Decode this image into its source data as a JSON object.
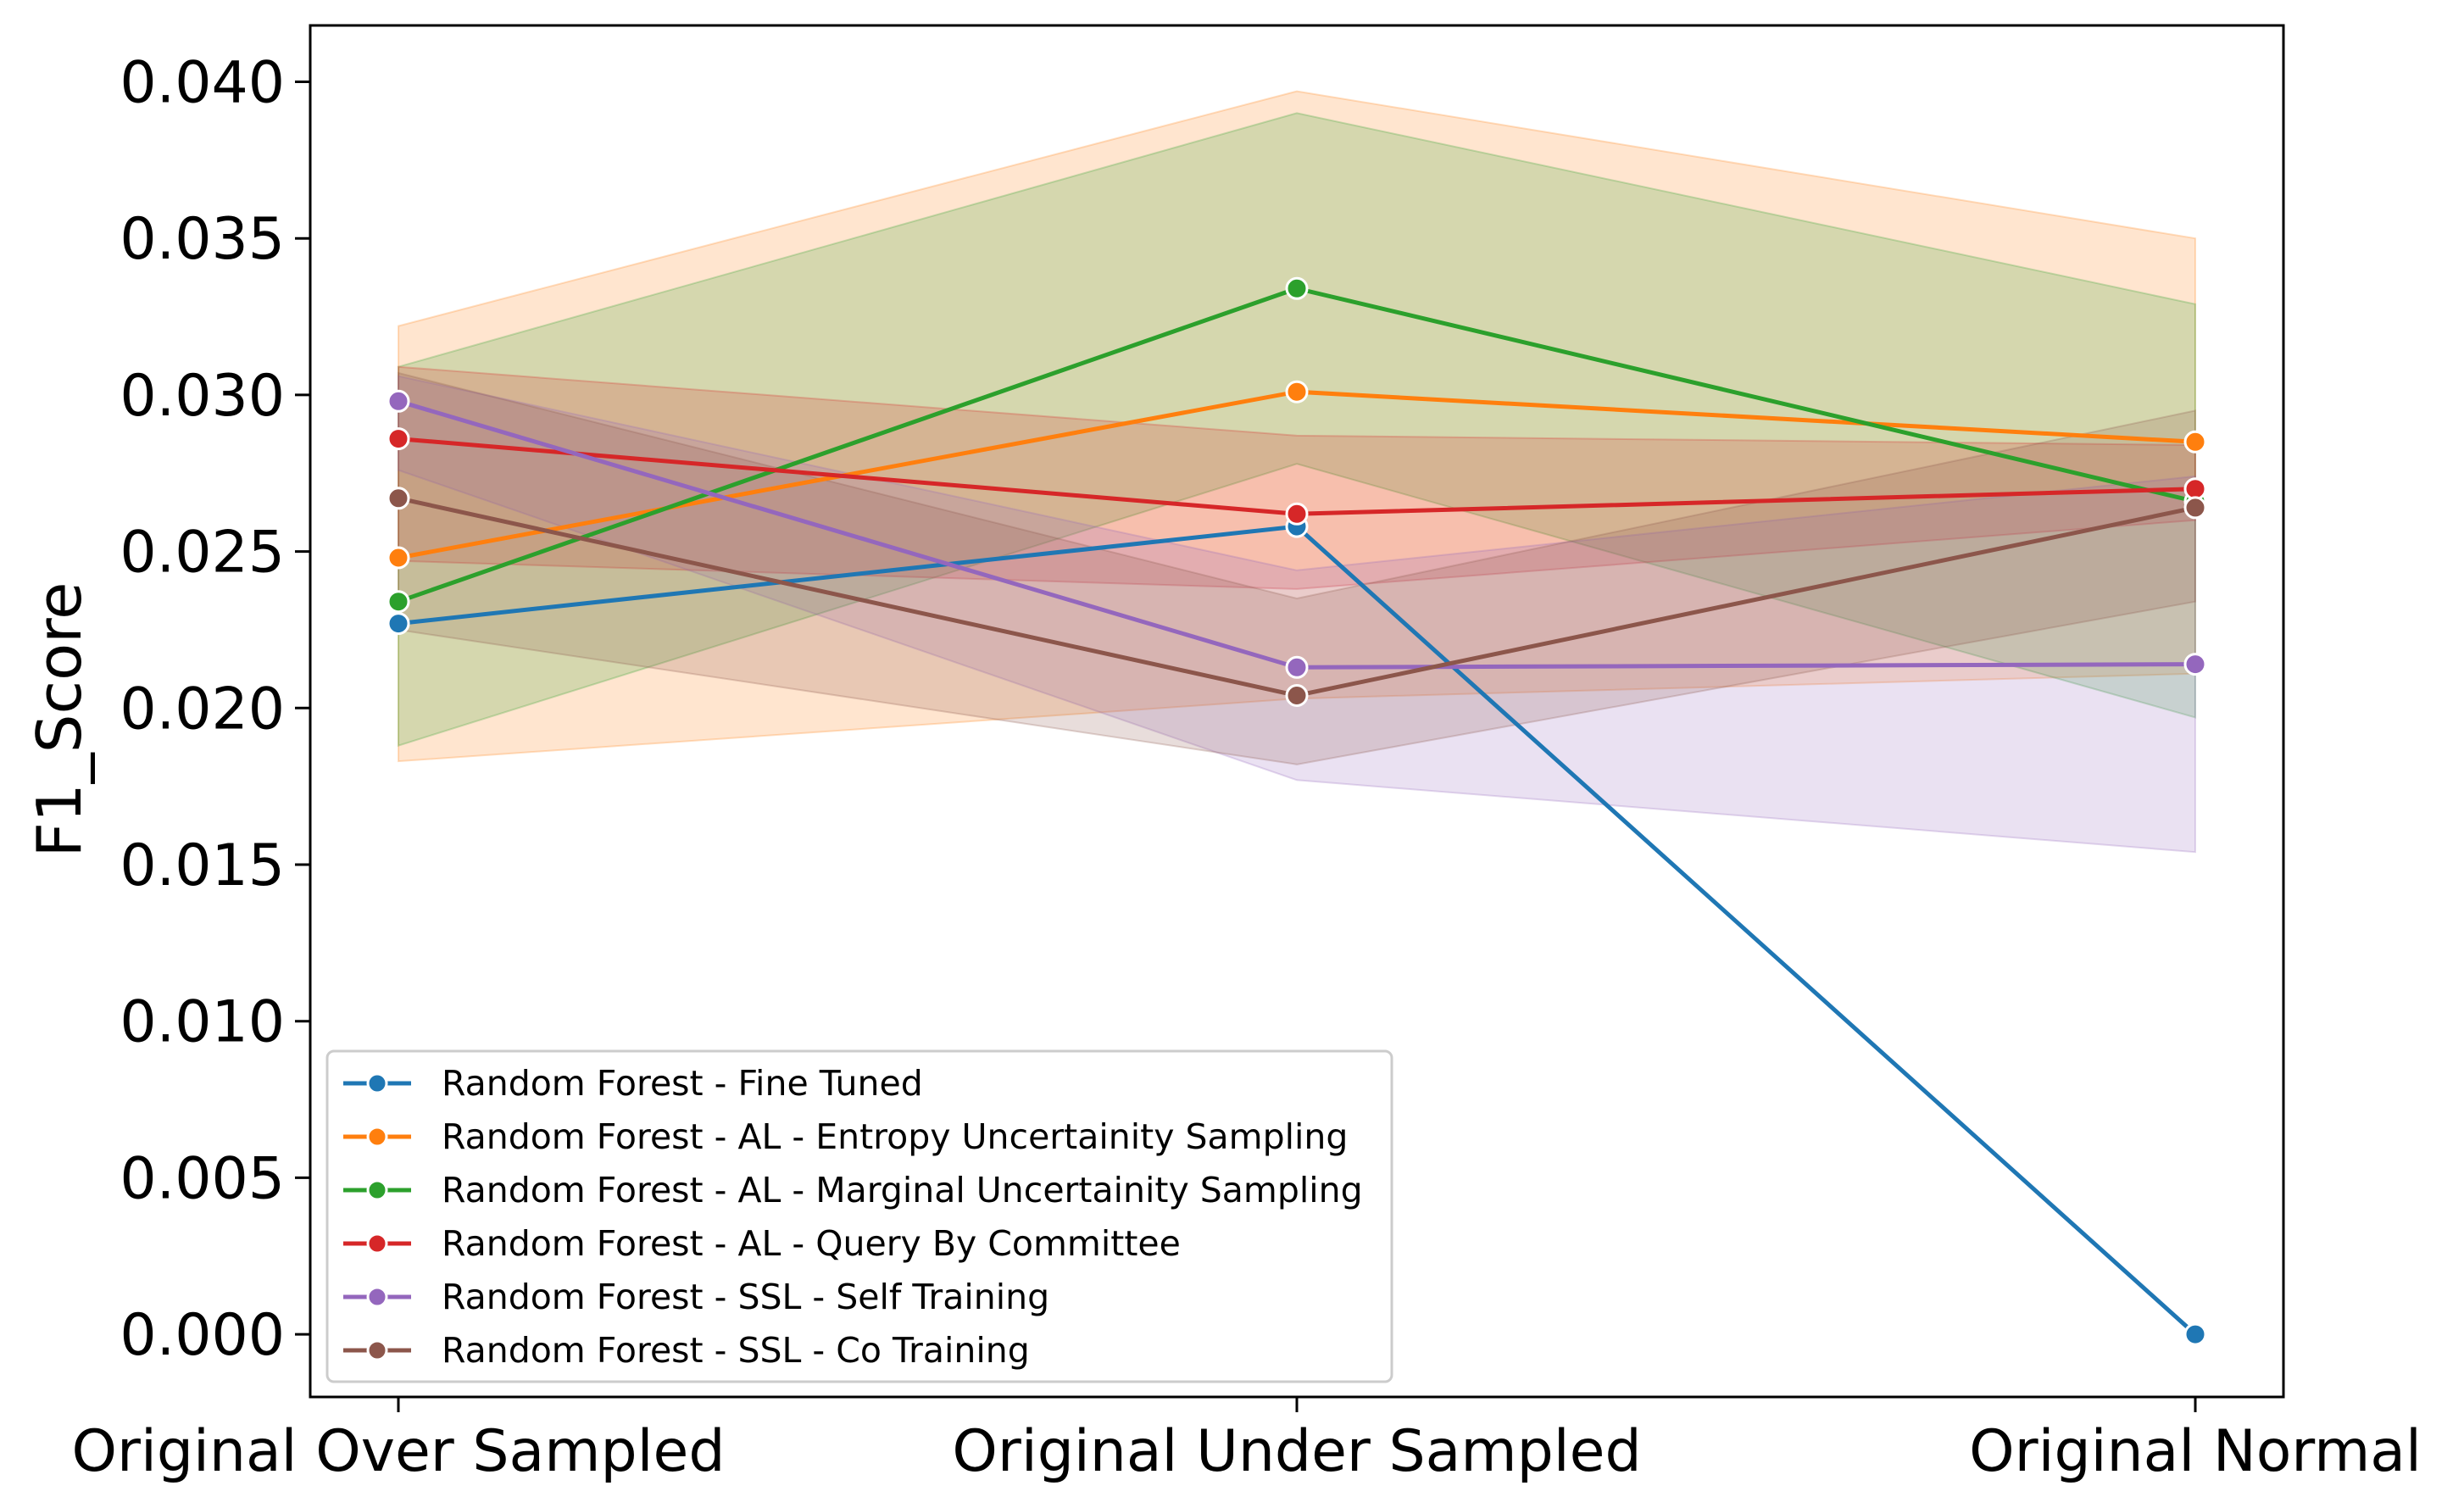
{
  "chart_data": {
    "type": "line",
    "title": "",
    "xlabel": "",
    "ylabel": "F1_Score",
    "categories": [
      "Original Over Sampled",
      "Original Under Sampled",
      "Original Normal"
    ],
    "ylim": [
      -0.002,
      0.0418
    ],
    "yticks": [
      "0.000",
      "0.005",
      "0.010",
      "0.015",
      "0.020",
      "0.025",
      "0.030",
      "0.035",
      "0.040"
    ],
    "grid": false,
    "legend_position": "lower-left",
    "series": [
      {
        "name": "Random Forest - Fine Tuned",
        "color": "#1f77b4",
        "values": [
          0.0227,
          0.0258,
          0.0
        ],
        "ci_low": null,
        "ci_high": null
      },
      {
        "name": "Random Forest - AL - Entropy Uncertainity Sampling",
        "color": "#ff7f0e",
        "values": [
          0.0248,
          0.0301,
          0.0285
        ],
        "ci_low": [
          0.0183,
          0.0203,
          0.0211
        ],
        "ci_high": [
          0.0322,
          0.0397,
          0.035
        ]
      },
      {
        "name": "Random Forest - AL - Marginal Uncertainity Sampling",
        "color": "#2ca02c",
        "values": [
          0.0234,
          0.0334,
          0.0266
        ],
        "ci_low": [
          0.0188,
          0.0278,
          0.0197
        ],
        "ci_high": [
          0.0309,
          0.039,
          0.0329
        ]
      },
      {
        "name": "Random Forest - AL - Query By Committee",
        "color": "#d62728",
        "values": [
          0.0286,
          0.0262,
          0.027
        ],
        "ci_low": [
          0.0247,
          0.0238,
          0.026
        ],
        "ci_high": [
          0.0309,
          0.0287,
          0.0284
        ]
      },
      {
        "name": "Random Forest - SSL - Self Training",
        "color": "#9467bd",
        "values": [
          0.0298,
          0.0213,
          0.0214
        ],
        "ci_low": [
          0.0276,
          0.0177,
          0.0154
        ],
        "ci_high": [
          0.0306,
          0.0244,
          0.0274
        ]
      },
      {
        "name": "Random Forest - SSL - Co Training",
        "color": "#8c564b",
        "values": [
          0.0267,
          0.0204,
          0.0264
        ],
        "ci_low": [
          0.0225,
          0.0182,
          0.0234
        ],
        "ci_high": [
          0.0307,
          0.0235,
          0.0295
        ]
      }
    ]
  }
}
